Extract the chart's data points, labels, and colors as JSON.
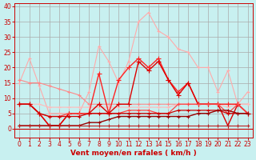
{
  "xlabel": "Vent moyen/en rafales ( km/h )",
  "background_color": "#c8f0f0",
  "grid_color": "#aaaaaa",
  "x_ticks": [
    0,
    1,
    2,
    3,
    4,
    5,
    6,
    7,
    8,
    9,
    10,
    11,
    12,
    13,
    14,
    15,
    16,
    17,
    18,
    19,
    20,
    21,
    22,
    23
  ],
  "ylim": [
    -3,
    41
  ],
  "xlim": [
    -0.5,
    23.5
  ],
  "series": [
    {
      "name": "light_pink_high",
      "color": "#ffaaaa",
      "linewidth": 0.8,
      "marker": "+",
      "markersize": 3.5,
      "values": [
        15,
        23,
        14,
        5,
        5,
        5,
        5,
        12,
        27,
        22,
        15,
        22,
        35,
        38,
        32,
        30,
        26,
        25,
        20,
        20,
        12,
        19,
        8,
        12
      ]
    },
    {
      "name": "medium_pink_mid",
      "color": "#ff8888",
      "linewidth": 0.8,
      "marker": "+",
      "markersize": 3.5,
      "values": [
        16,
        15,
        15,
        14,
        13,
        12,
        11,
        8,
        8,
        8,
        8,
        8,
        8,
        8,
        8,
        8,
        8,
        8,
        8,
        8,
        8,
        8,
        8,
        8
      ]
    },
    {
      "name": "pink_flat",
      "color": "#ffbbbb",
      "linewidth": 0.8,
      "marker": "+",
      "markersize": 3.0,
      "values": [
        8,
        8,
        8,
        7,
        7,
        7,
        7,
        7,
        7,
        7,
        7,
        7,
        7,
        7,
        7,
        7,
        8,
        8,
        8,
        8,
        8,
        7,
        8,
        8
      ]
    },
    {
      "name": "red_mid_high",
      "color": "#ff2222",
      "linewidth": 1.0,
      "marker": "+",
      "markersize": 4.0,
      "values": [
        8,
        8,
        5,
        1,
        1,
        5,
        5,
        5,
        18,
        5,
        16,
        20,
        23,
        20,
        23,
        16,
        12,
        15,
        8,
        8,
        8,
        8,
        8,
        5
      ]
    },
    {
      "name": "red_mid",
      "color": "#dd0000",
      "linewidth": 1.0,
      "marker": "+",
      "markersize": 4.0,
      "values": [
        8,
        8,
        5,
        1,
        1,
        5,
        5,
        5,
        8,
        5,
        8,
        8,
        22,
        19,
        22,
        16,
        11,
        15,
        8,
        8,
        8,
        1,
        8,
        5
      ]
    },
    {
      "name": "red_low1",
      "color": "#ff4444",
      "linewidth": 0.9,
      "marker": "+",
      "markersize": 3.5,
      "values": [
        8,
        8,
        5,
        4,
        4,
        5,
        5,
        5,
        5,
        5,
        5,
        6,
        6,
        6,
        5,
        5,
        8,
        8,
        8,
        8,
        8,
        5,
        8,
        5
      ]
    },
    {
      "name": "red_low2",
      "color": "#cc0000",
      "linewidth": 0.9,
      "marker": "+",
      "markersize": 3.5,
      "values": [
        8,
        8,
        5,
        4,
        4,
        4,
        4,
        5,
        5,
        5,
        5,
        5,
        5,
        5,
        5,
        5,
        6,
        6,
        6,
        6,
        6,
        5,
        5,
        5
      ]
    },
    {
      "name": "dark_red_base",
      "color": "#990000",
      "linewidth": 1.0,
      "marker": "+",
      "markersize": 3.0,
      "values": [
        1,
        1,
        1,
        1,
        1,
        1,
        1,
        2,
        2,
        3,
        4,
        4,
        4,
        4,
        4,
        4,
        4,
        4,
        5,
        5,
        6,
        6,
        5,
        5
      ]
    },
    {
      "name": "very_low",
      "color": "#bb2222",
      "linewidth": 0.8,
      "marker": "+",
      "markersize": 3.0,
      "values": [
        1,
        1,
        1,
        1,
        1,
        1,
        1,
        1,
        1,
        1,
        1,
        1,
        1,
        1,
        1,
        1,
        1,
        1,
        1,
        1,
        1,
        1,
        1,
        1
      ]
    }
  ],
  "yticks": [
    0,
    5,
    10,
    15,
    20,
    25,
    30,
    35,
    40
  ],
  "tick_fontsize": 5.5,
  "xlabel_fontsize": 6.5
}
